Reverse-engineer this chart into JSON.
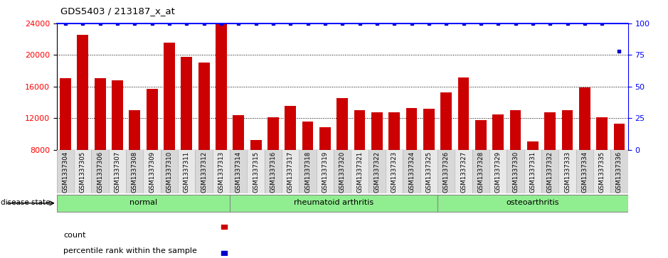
{
  "title": "GDS5403 / 213187_x_at",
  "samples": [
    "GSM1337304",
    "GSM1337305",
    "GSM1337306",
    "GSM1337307",
    "GSM1337308",
    "GSM1337309",
    "GSM1337310",
    "GSM1337311",
    "GSM1337312",
    "GSM1337313",
    "GSM1337314",
    "GSM1337315",
    "GSM1337316",
    "GSM1337317",
    "GSM1337318",
    "GSM1337319",
    "GSM1337320",
    "GSM1337321",
    "GSM1337322",
    "GSM1337323",
    "GSM1337324",
    "GSM1337325",
    "GSM1337326",
    "GSM1337327",
    "GSM1337328",
    "GSM1337329",
    "GSM1337330",
    "GSM1337331",
    "GSM1337332",
    "GSM1337333",
    "GSM1337334",
    "GSM1337335",
    "GSM1337336"
  ],
  "counts": [
    17000,
    22500,
    17000,
    16800,
    13000,
    15700,
    21500,
    19700,
    19000,
    24000,
    12400,
    9200,
    12100,
    13500,
    11600,
    10800,
    14500,
    13000,
    12700,
    12700,
    13300,
    13200,
    15200,
    17100,
    11700,
    12500,
    13000,
    9000,
    12700,
    13000,
    15900,
    12100,
    11300
  ],
  "percentile_ranks": [
    100,
    100,
    100,
    100,
    100,
    100,
    100,
    100,
    100,
    100,
    100,
    100,
    100,
    100,
    100,
    100,
    100,
    100,
    100,
    100,
    100,
    100,
    100,
    100,
    100,
    100,
    100,
    100,
    100,
    100,
    100,
    100,
    78
  ],
  "groups": [
    {
      "label": "normal",
      "start": 0,
      "end": 9
    },
    {
      "label": "rheumatoid arthritis",
      "start": 10,
      "end": 21
    },
    {
      "label": "osteoarthritis",
      "start": 22,
      "end": 32
    }
  ],
  "bar_color": "#CC0000",
  "percentile_color": "#0000CC",
  "ymin": 8000,
  "ymax": 24000,
  "yticks_left": [
    8000,
    12000,
    16000,
    20000,
    24000
  ],
  "yticks_right": [
    0,
    25,
    50,
    75,
    100
  ],
  "group_color": "#90EE90",
  "group_border_color": "#888888"
}
